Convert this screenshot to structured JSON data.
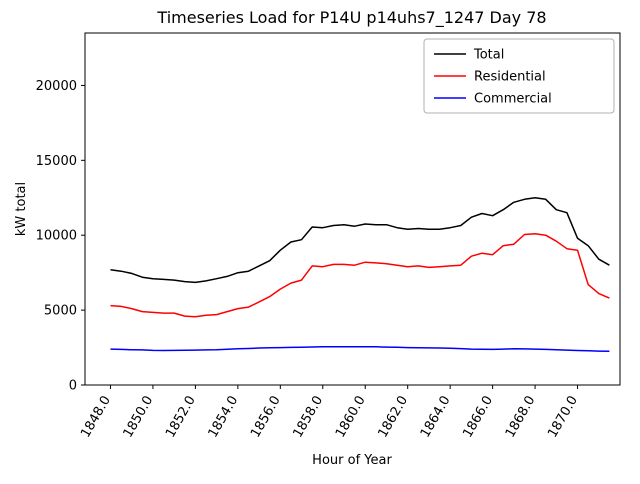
{
  "chart_data": {
    "type": "line",
    "title": "Timeseries Load for P14U p14uhs7_1247  Day 78",
    "xlabel": "Hour of Year",
    "ylabel": "kW total",
    "xlim": [
      1846.8,
      1872.0
    ],
    "ylim": [
      0,
      23500
    ],
    "xticks": [
      1848,
      1850,
      1852,
      1854,
      1856,
      1858,
      1860,
      1862,
      1864,
      1866,
      1868,
      1870
    ],
    "xtick_labels": [
      "1848.0",
      "1850.0",
      "1852.0",
      "1854.0",
      "1856.0",
      "1858.0",
      "1860.0",
      "1862.0",
      "1864.0",
      "1866.0",
      "1868.0",
      "1870.0"
    ],
    "yticks": [
      0,
      5000,
      10000,
      15000,
      20000
    ],
    "ytick_labels": [
      "0",
      "5000",
      "10000",
      "15000",
      "20000"
    ],
    "grid": false,
    "legend_position": "upper right",
    "x": [
      1848.0,
      1848.5,
      1849.0,
      1849.5,
      1850.0,
      1850.5,
      1851.0,
      1851.5,
      1852.0,
      1852.5,
      1853.0,
      1853.5,
      1854.0,
      1854.5,
      1855.0,
      1855.5,
      1856.0,
      1856.5,
      1857.0,
      1857.5,
      1858.0,
      1858.5,
      1859.0,
      1859.5,
      1860.0,
      1860.5,
      1861.0,
      1861.5,
      1862.0,
      1862.5,
      1863.0,
      1863.5,
      1864.0,
      1864.5,
      1865.0,
      1865.5,
      1866.0,
      1866.5,
      1867.0,
      1867.5,
      1868.0,
      1868.5,
      1869.0,
      1869.5,
      1870.0,
      1870.5,
      1871.0,
      1871.5
    ],
    "series": [
      {
        "name": "Total",
        "color": "#000000",
        "values": [
          7700,
          7600,
          7450,
          7200,
          7100,
          7050,
          7000,
          6900,
          6850,
          6950,
          7100,
          7250,
          7500,
          7600,
          7950,
          8300,
          9000,
          9550,
          9700,
          10550,
          10500,
          10650,
          10700,
          10600,
          10750,
          10700,
          10700,
          10500,
          10400,
          10450,
          10400,
          10400,
          10500,
          10650,
          11200,
          11450,
          11300,
          11700,
          12200,
          12400,
          12500,
          12400,
          11700,
          11500,
          9800,
          9300,
          8400,
          8000
        ]
      },
      {
        "name": "Residential",
        "color": "#ff0000",
        "values": [
          5300,
          5250,
          5100,
          4900,
          4850,
          4800,
          4800,
          4600,
          4550,
          4650,
          4700,
          4900,
          5100,
          5200,
          5550,
          5900,
          6400,
          6800,
          7000,
          7950,
          7900,
          8050,
          8050,
          8000,
          8200,
          8150,
          8100,
          8000,
          7900,
          7950,
          7850,
          7900,
          7950,
          8000,
          8600,
          8800,
          8700,
          9300,
          9400,
          10050,
          10100,
          10000,
          9600,
          9100,
          9000,
          6700,
          6100,
          5800
        ]
      },
      {
        "name": "Commercial",
        "color": "#0000ff",
        "values": [
          2400,
          2380,
          2360,
          2340,
          2310,
          2300,
          2310,
          2320,
          2330,
          2340,
          2360,
          2390,
          2420,
          2440,
          2470,
          2490,
          2500,
          2510,
          2520,
          2540,
          2550,
          2550,
          2555,
          2560,
          2560,
          2550,
          2530,
          2520,
          2500,
          2490,
          2480,
          2470,
          2450,
          2430,
          2400,
          2390,
          2380,
          2400,
          2420,
          2410,
          2400,
          2380,
          2350,
          2330,
          2300,
          2280,
          2260,
          2250
        ]
      }
    ]
  }
}
